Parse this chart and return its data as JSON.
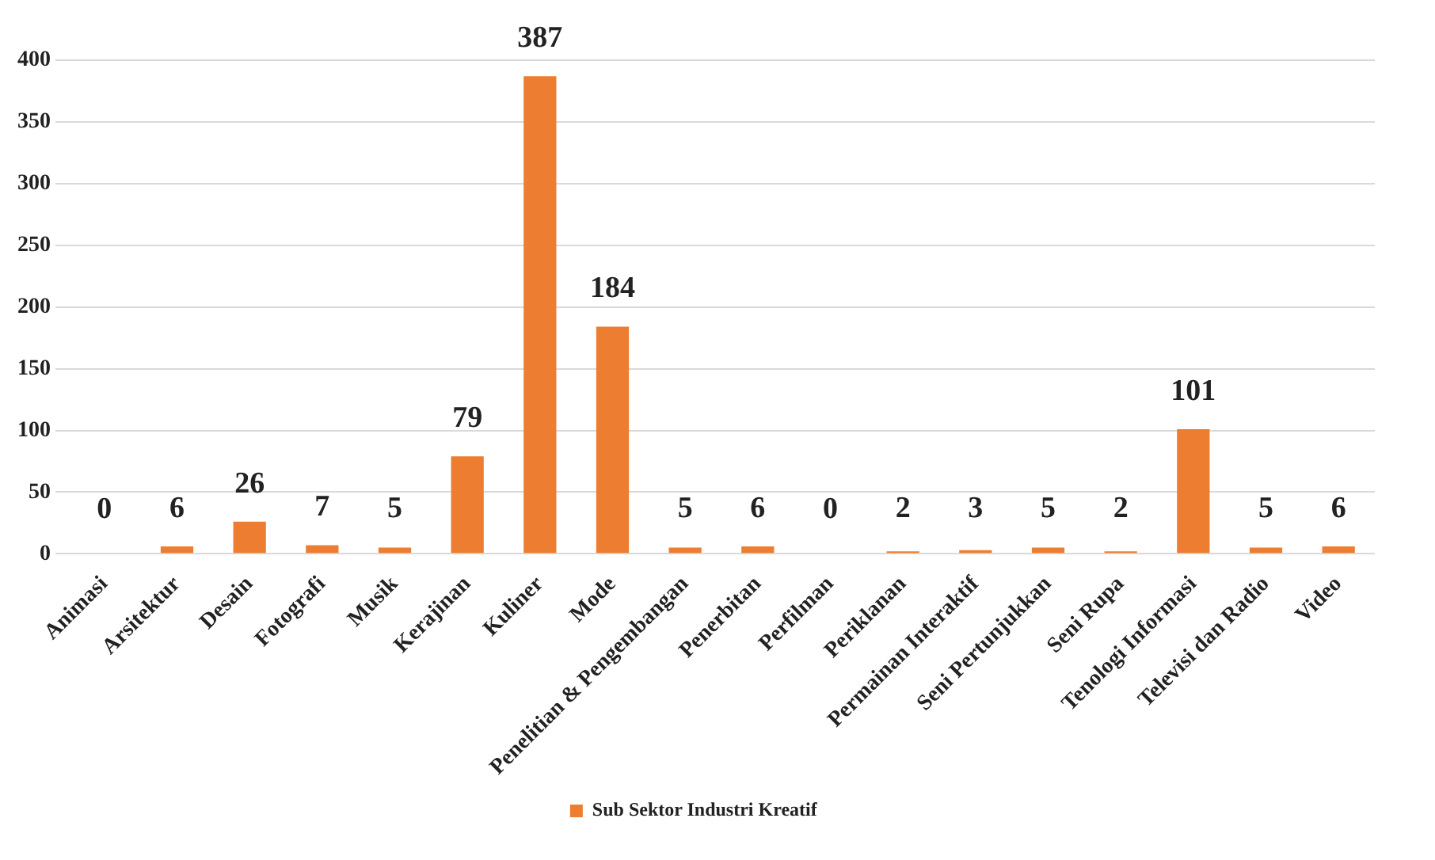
{
  "chart_data": {
    "type": "bar",
    "categories": [
      "Animasi",
      "Arsitektur",
      "Desain",
      "Fotografi",
      "Musik",
      "Kerajinan",
      "Kuliner",
      "Mode",
      "Penelitian & Pengembangan",
      "Penerbitan",
      "Perfilman",
      "Periklanan",
      "Permainan Interaktif",
      "Seni Pertunjukkan",
      "Seni Rupa",
      "Tenologi Informasi",
      "Televisi dan Radio",
      "Video"
    ],
    "series": [
      {
        "name": "Sub Sektor Industri Kreatif",
        "color": "#ed7d31",
        "values": [
          0,
          6,
          26,
          7,
          5,
          79,
          387,
          184,
          5,
          6,
          0,
          2,
          3,
          5,
          2,
          101,
          5,
          6
        ]
      }
    ],
    "ylim": [
      0,
      400
    ],
    "yticks": [
      0,
      50,
      100,
      150,
      200,
      250,
      300,
      350,
      400
    ],
    "grid": "y",
    "legend": "bottom",
    "data_labels": true
  }
}
